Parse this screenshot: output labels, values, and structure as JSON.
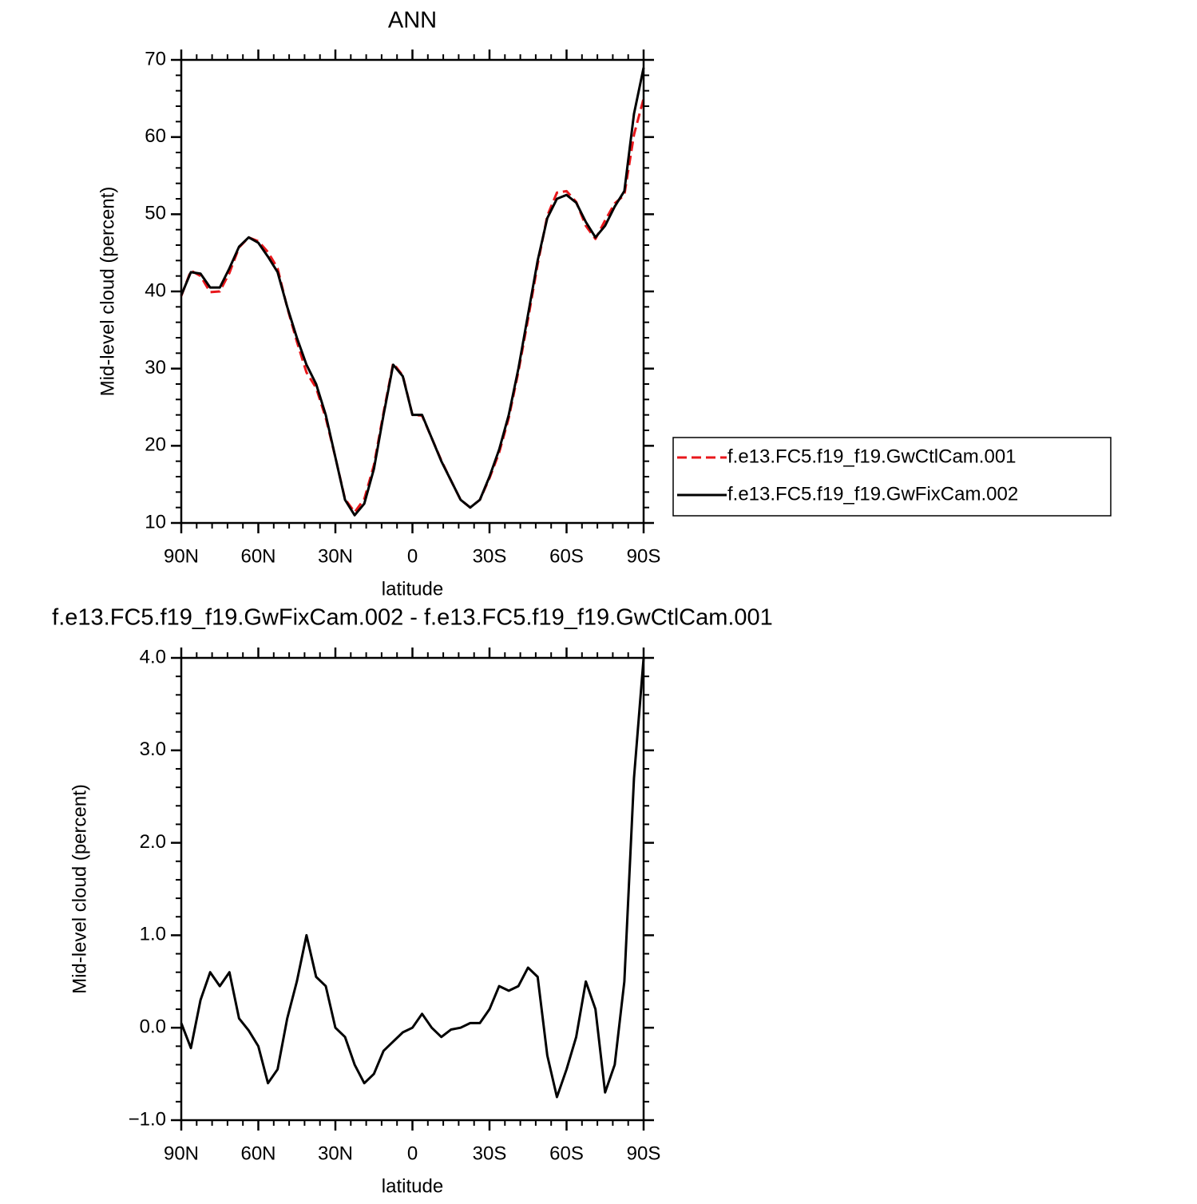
{
  "chart_data": [
    {
      "type": "line",
      "title": "ANN",
      "x_label": "latitude",
      "y_label": "Mid-level cloud (percent)",
      "x": [
        90,
        86.25,
        82.5,
        78.75,
        75,
        71.25,
        67.5,
        63.75,
        60,
        56.25,
        52.5,
        48.75,
        45,
        41.25,
        37.5,
        33.75,
        30,
        26.25,
        22.5,
        18.75,
        15,
        11.25,
        7.5,
        3.75,
        0,
        -3.75,
        -7.5,
        -11.25,
        -15,
        -18.75,
        -22.5,
        -26.25,
        -30,
        -33.75,
        -37.5,
        -41.25,
        -45,
        -48.75,
        -52.5,
        -56.25,
        -60,
        -63.75,
        -67.5,
        -71.25,
        -75,
        -78.75,
        -82.5,
        -86.25,
        -90
      ],
      "series": [
        {
          "name": "f.e13.FC5.f19_f19.GwCtlCam.001",
          "color": "#e8171b",
          "line_style": "dashed",
          "values": [
            39.4,
            42.7,
            42.0,
            39.9,
            40.0,
            42.4,
            45.7,
            47.0,
            46.5,
            45.1,
            43.0,
            37.9,
            33.5,
            29.5,
            27.5,
            23.6,
            18.5,
            13.1,
            11.4,
            13.1,
            17.5,
            24.3,
            30.7,
            29.1,
            24.0,
            23.9,
            21.0,
            18.1,
            15.5,
            13.0,
            12.0,
            13.0,
            15.8,
            19.1,
            23.6,
            29.6,
            36.4,
            43.5,
            49.8,
            52.8,
            53.0,
            51.6,
            48.5,
            46.8,
            49.2,
            51.4,
            52.5,
            60.3,
            65.0
          ]
        },
        {
          "name": "f.e13.FC5.f19_f19.GwFixCam.002",
          "color": "#000000",
          "line_style": "solid",
          "values": [
            39.5,
            42.5,
            42.3,
            40.5,
            40.5,
            43.0,
            45.8,
            47.0,
            46.3,
            44.5,
            42.5,
            38.0,
            34.0,
            30.5,
            28.0,
            24.0,
            18.5,
            13.0,
            11.0,
            12.5,
            17.0,
            24.0,
            30.5,
            29.0,
            24.0,
            24.0,
            21.0,
            18.0,
            15.5,
            13.0,
            12.0,
            13.0,
            16.0,
            19.5,
            24.0,
            30.0,
            37.0,
            44.0,
            49.5,
            52.0,
            52.5,
            51.5,
            49.0,
            47.0,
            48.5,
            51.0,
            53.0,
            63.0,
            69.0
          ]
        }
      ],
      "xlim": [
        90,
        -90
      ],
      "xticks": [
        {
          "value": 90,
          "label": "90N"
        },
        {
          "value": 60,
          "label": "60N"
        },
        {
          "value": 30,
          "label": "30N"
        },
        0,
        {
          "value": -30,
          "label": "30S"
        },
        {
          "value": -60,
          "label": "60S"
        },
        {
          "value": -90,
          "label": "90S"
        }
      ],
      "ylim": [
        10,
        70
      ],
      "yticks": [
        10,
        20,
        30,
        40,
        50,
        60,
        70
      ],
      "legend": "right"
    },
    {
      "type": "line",
      "title": "f.e13.FC5.f19_f19.GwFixCam.002 - f.e13.FC5.f19_f19.GwCtlCam.001",
      "x_label": "latitude",
      "y_label": "Mid-level cloud (percent)",
      "x": [
        90,
        86.25,
        82.5,
        78.75,
        75,
        71.25,
        67.5,
        63.75,
        60,
        56.25,
        52.5,
        48.75,
        45,
        41.25,
        37.5,
        33.75,
        30,
        26.25,
        22.5,
        18.75,
        15,
        11.25,
        7.5,
        3.75,
        0,
        -3.75,
        -7.5,
        -11.25,
        -15,
        -18.75,
        -22.5,
        -26.25,
        -30,
        -33.75,
        -37.5,
        -41.25,
        -45,
        -48.75,
        -52.5,
        -56.25,
        -60,
        -63.75,
        -67.5,
        -71.25,
        -75,
        -78.75,
        -82.5,
        -86.25,
        -90
      ],
      "series": [
        {
          "color": "#000000",
          "line_style": "solid",
          "values": [
            0.05,
            -0.22,
            0.3,
            0.6,
            0.45,
            0.6,
            0.1,
            -0.03,
            -0.2,
            -0.6,
            -0.45,
            0.1,
            0.5,
            1.0,
            0.55,
            0.45,
            0.0,
            -0.1,
            -0.4,
            -0.6,
            -0.5,
            -0.25,
            -0.15,
            -0.05,
            0.0,
            0.15,
            0.0,
            -0.1,
            -0.02,
            0.0,
            0.05,
            0.05,
            0.2,
            0.45,
            0.4,
            0.45,
            0.65,
            0.55,
            -0.3,
            -0.75,
            -0.45,
            -0.1,
            0.5,
            0.2,
            -0.7,
            -0.4,
            0.5,
            2.7,
            4.0
          ]
        }
      ],
      "xlim": [
        90,
        -90
      ],
      "xticks": [
        {
          "value": 90,
          "label": "90N"
        },
        {
          "value": 60,
          "label": "60N"
        },
        {
          "value": 30,
          "label": "30N"
        },
        0,
        {
          "value": -30,
          "label": "30S"
        },
        {
          "value": -60,
          "label": "60S"
        },
        {
          "value": -90,
          "label": "90S"
        }
      ],
      "ylim": [
        -1.0,
        4.0
      ],
      "yticks": [
        {
          "value": -1.0,
          "label": "−1.0"
        },
        {
          "value": 0.0,
          "label": "0.0"
        },
        {
          "value": 1.0,
          "label": "1.0"
        },
        {
          "value": 2.0,
          "label": "2.0"
        },
        {
          "value": 3.0,
          "label": "3.0"
        },
        {
          "value": 4.0,
          "label": "4.0"
        }
      ]
    }
  ]
}
